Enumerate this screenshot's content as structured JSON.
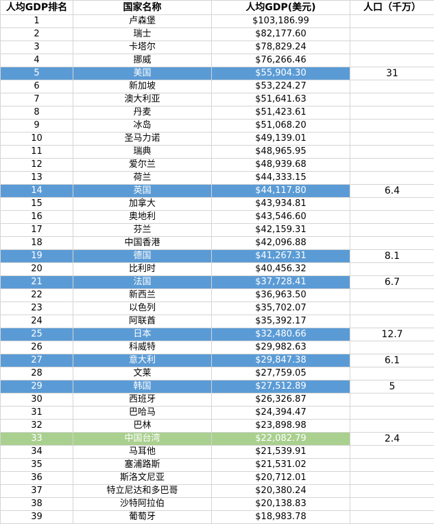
{
  "headers": {
    "rank": "人均GDP排名",
    "country": "国家名称",
    "gdp": "人均GDP(美元)",
    "population": "人口（千万）"
  },
  "highlight_colors": {
    "blue": "#5b9bd5",
    "green": "#a9d08e"
  },
  "rows": [
    {
      "rank": "1",
      "country": "卢森堡",
      "gdp": "$103,186.99",
      "pop": "",
      "hl": ""
    },
    {
      "rank": "2",
      "country": "瑞士",
      "gdp": "$82,177.60",
      "pop": "",
      "hl": ""
    },
    {
      "rank": "3",
      "country": "卡塔尔",
      "gdp": "$78,829.24",
      "pop": "",
      "hl": ""
    },
    {
      "rank": "4",
      "country": "挪威",
      "gdp": "$76,266.46",
      "pop": "",
      "hl": ""
    },
    {
      "rank": "5",
      "country": "美国",
      "gdp": "$55,904.30",
      "pop": "31",
      "hl": "blue"
    },
    {
      "rank": "6",
      "country": "新加坡",
      "gdp": "$53,224.27",
      "pop": "",
      "hl": ""
    },
    {
      "rank": "7",
      "country": "澳大利亚",
      "gdp": "$51,641.63",
      "pop": "",
      "hl": ""
    },
    {
      "rank": "8",
      "country": "丹麦",
      "gdp": "$51,423.61",
      "pop": "",
      "hl": ""
    },
    {
      "rank": "9",
      "country": "冰岛",
      "gdp": "$51,068.20",
      "pop": "",
      "hl": ""
    },
    {
      "rank": "10",
      "country": "圣马力诺",
      "gdp": "$49,139.01",
      "pop": "",
      "hl": ""
    },
    {
      "rank": "11",
      "country": "瑞典",
      "gdp": "$48,965.95",
      "pop": "",
      "hl": ""
    },
    {
      "rank": "12",
      "country": "爱尔兰",
      "gdp": "$48,939.68",
      "pop": "",
      "hl": ""
    },
    {
      "rank": "13",
      "country": "荷兰",
      "gdp": "$44,333.15",
      "pop": "",
      "hl": ""
    },
    {
      "rank": "14",
      "country": "英国",
      "gdp": "$44,117.80",
      "pop": "6.4",
      "hl": "blue"
    },
    {
      "rank": "15",
      "country": "加拿大",
      "gdp": "$43,934.81",
      "pop": "",
      "hl": ""
    },
    {
      "rank": "16",
      "country": "奥地利",
      "gdp": "$43,546.60",
      "pop": "",
      "hl": ""
    },
    {
      "rank": "17",
      "country": "芬兰",
      "gdp": "$42,159.31",
      "pop": "",
      "hl": ""
    },
    {
      "rank": "18",
      "country": "中国香港",
      "gdp": "$42,096.88",
      "pop": "",
      "hl": ""
    },
    {
      "rank": "19",
      "country": "德国",
      "gdp": "$41,267.31",
      "pop": "8.1",
      "hl": "blue"
    },
    {
      "rank": "20",
      "country": "比利时",
      "gdp": "$40,456.32",
      "pop": "",
      "hl": ""
    },
    {
      "rank": "21",
      "country": "法国",
      "gdp": "$37,728.41",
      "pop": "6.7",
      "hl": "blue"
    },
    {
      "rank": "22",
      "country": "新西兰",
      "gdp": "$36,963.50",
      "pop": "",
      "hl": ""
    },
    {
      "rank": "23",
      "country": "以色列",
      "gdp": "$35,702.07",
      "pop": "",
      "hl": ""
    },
    {
      "rank": "24",
      "country": "阿联酋",
      "gdp": "$35,392.17",
      "pop": "",
      "hl": ""
    },
    {
      "rank": "25",
      "country": "日本",
      "gdp": "$32,480.66",
      "pop": "12.7",
      "hl": "blue"
    },
    {
      "rank": "26",
      "country": "科威特",
      "gdp": "$29,982.63",
      "pop": "",
      "hl": ""
    },
    {
      "rank": "27",
      "country": "意大利",
      "gdp": "$29,847.38",
      "pop": "6.1",
      "hl": "blue"
    },
    {
      "rank": "28",
      "country": "文莱",
      "gdp": "$27,759.05",
      "pop": "",
      "hl": ""
    },
    {
      "rank": "29",
      "country": "韩国",
      "gdp": "$27,512.89",
      "pop": "5",
      "hl": "blue"
    },
    {
      "rank": "30",
      "country": "西班牙",
      "gdp": "$26,326.87",
      "pop": "",
      "hl": ""
    },
    {
      "rank": "31",
      "country": "巴哈马",
      "gdp": "$24,394.47",
      "pop": "",
      "hl": ""
    },
    {
      "rank": "32",
      "country": "巴林",
      "gdp": "$23,898.98",
      "pop": "",
      "hl": ""
    },
    {
      "rank": "33",
      "country": "中国台湾",
      "gdp": "$22,082.79",
      "pop": "2.4",
      "hl": "green"
    },
    {
      "rank": "34",
      "country": "马耳他",
      "gdp": "$21,539.91",
      "pop": "",
      "hl": ""
    },
    {
      "rank": "35",
      "country": "塞浦路斯",
      "gdp": "$21,531.02",
      "pop": "",
      "hl": ""
    },
    {
      "rank": "36",
      "country": "斯洛文尼亚",
      "gdp": "$20,712.01",
      "pop": "",
      "hl": ""
    },
    {
      "rank": "37",
      "country": "特立尼达和多巴哥",
      "gdp": "$20,380.24",
      "pop": "",
      "hl": ""
    },
    {
      "rank": "38",
      "country": "沙特阿拉伯",
      "gdp": "$20,138.83",
      "pop": "",
      "hl": ""
    },
    {
      "rank": "39",
      "country": "葡萄牙",
      "gdp": "$18,983.78",
      "pop": "",
      "hl": ""
    }
  ]
}
